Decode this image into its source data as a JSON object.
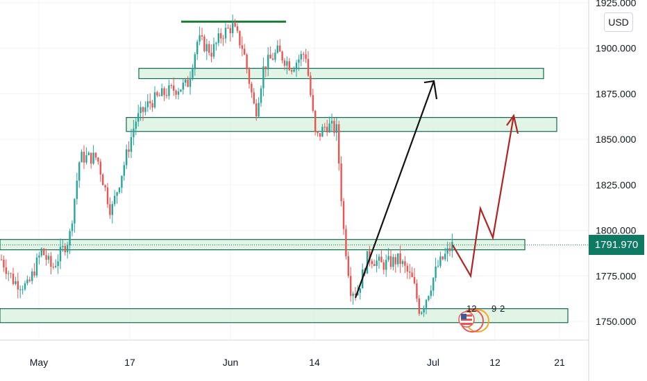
{
  "chart_data": {
    "type": "candlestick",
    "currency": "USD",
    "last_price": "1791.970",
    "y_ticks": [
      "1925.000",
      "1900.000",
      "1875.000",
      "1850.000",
      "1825.000",
      "1800.000",
      "1775.000",
      "1750.000"
    ],
    "x_ticks": [
      "May",
      "17",
      "Jun",
      "14",
      "Jul",
      "12",
      "21"
    ],
    "ylim": [
      1738,
      1927
    ],
    "colors": {
      "up": "#26a69a",
      "down": "#ef5350",
      "zone_fill": "#d8f0dc",
      "zone_border": "#0e6b4f",
      "accent": "#0e7a63"
    },
    "zones": [
      {
        "low": 1886,
        "high": 1889
      },
      {
        "low": 1857,
        "high": 1862
      },
      {
        "low": 1792,
        "high": 1795
      },
      {
        "low": 1752,
        "high": 1757
      }
    ],
    "resistance_line": 1915,
    "path_projection": [
      1792,
      1775,
      1812,
      1796,
      1863
    ],
    "path_arrow": [
      1763,
      1882
    ],
    "events": {
      "count": "12",
      "note": "9",
      "extra": "2"
    }
  }
}
